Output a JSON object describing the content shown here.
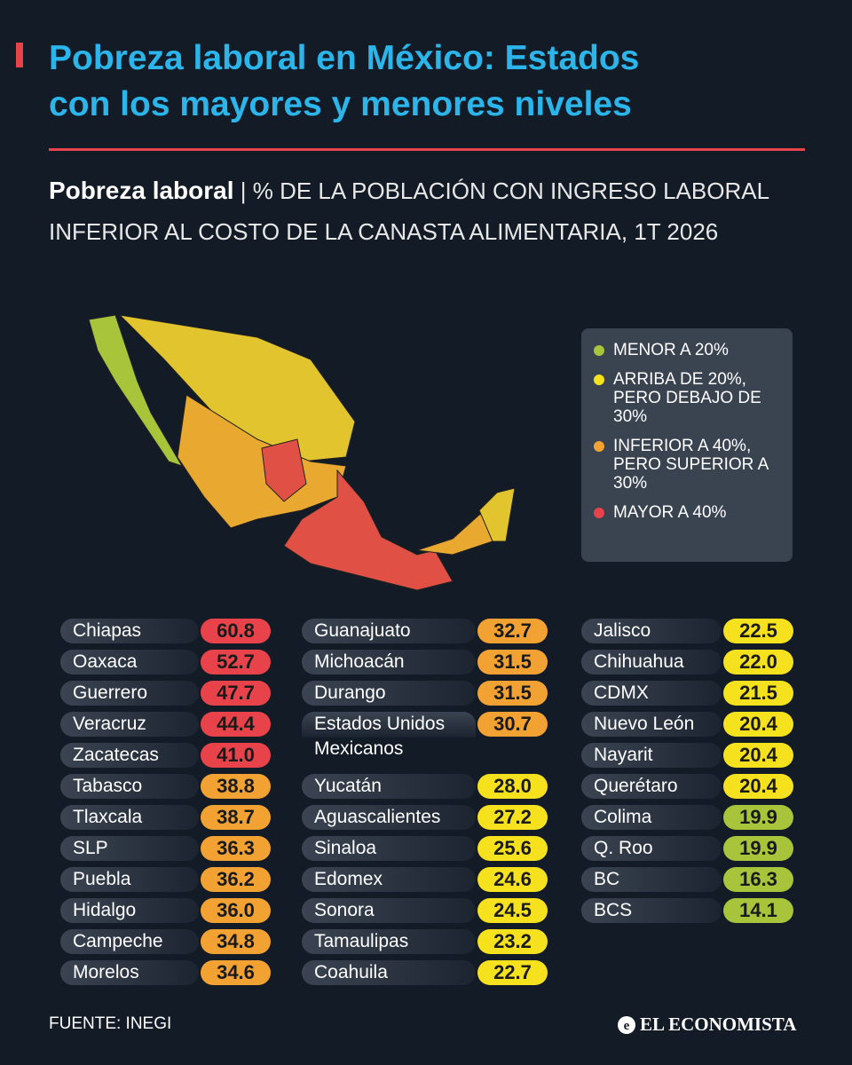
{
  "header": {
    "title_lines": [
      "Pobreza laboral en México: Estados",
      "con los mayores y menores niveles"
    ]
  },
  "subtitle": {
    "bold": "Pobreza laboral",
    "separator": "|",
    "text": "% DE LA POBLACIÓN CON INGRESO LABORAL INFERIOR AL COSTO DE LA CANASTA ALIMENTARIA, 1T 2026"
  },
  "legend": {
    "items": [
      {
        "text": "MENOR A 20%",
        "color": "#a8c43a"
      },
      {
        "text": "ARRIBA DE 20%, PERO DEBAJO DE 30%",
        "color": "#f6e11e"
      },
      {
        "text": "INFERIOR A 40%, PERO SUPERIOR A 30%",
        "color": "#f2a232"
      },
      {
        "text": "MAYOR A 40%",
        "color": "#e8434b"
      }
    ]
  },
  "table": {
    "columns": [
      [
        {
          "name": "Chiapas",
          "value": "60.8",
          "color": "#e8434b"
        },
        {
          "name": "Oaxaca",
          "value": "52.7",
          "color": "#e8434b"
        },
        {
          "name": "Guerrero",
          "value": "47.7",
          "color": "#e8434b"
        },
        {
          "name": "Veracruz",
          "value": "44.4",
          "color": "#e8434b"
        },
        {
          "name": "Zacatecas",
          "value": "41.0",
          "color": "#e8434b"
        },
        {
          "name": "Tabasco",
          "value": "38.8",
          "color": "#f2a232"
        },
        {
          "name": "Tlaxcala",
          "value": "38.7",
          "color": "#f2a232"
        },
        {
          "name": "SLP",
          "value": "36.3",
          "color": "#f2a232"
        },
        {
          "name": "Puebla",
          "value": "36.2",
          "color": "#f2a232"
        },
        {
          "name": "Hidalgo",
          "value": "36.0",
          "color": "#f2a232"
        },
        {
          "name": "Campeche",
          "value": "34.8",
          "color": "#f2a232"
        },
        {
          "name": "Morelos",
          "value": "34.6",
          "color": "#f2a232"
        }
      ],
      [
        {
          "name": "Guanajuato",
          "value": "32.7",
          "color": "#f2a232"
        },
        {
          "name": "Michoacán",
          "value": "31.5",
          "color": "#f2a232"
        },
        {
          "name": "Durango",
          "value": "31.5",
          "color": "#f2a232"
        },
        {
          "name": "Estados Unidos Mexicanos",
          "value": "30.7",
          "color": "#f2a232"
        },
        {
          "name": "Yucatán",
          "value": "28.0",
          "color": "#f6e11e"
        },
        {
          "name": "Aguascalientes",
          "value": "27.2",
          "color": "#f6e11e"
        },
        {
          "name": "Sinaloa",
          "value": "25.6",
          "color": "#f6e11e"
        },
        {
          "name": "Edomex",
          "value": "24.6",
          "color": "#f6e11e"
        },
        {
          "name": "Sonora",
          "value": "24.5",
          "color": "#f6e11e"
        },
        {
          "name": "Tamaulipas",
          "value": "23.2",
          "color": "#f6e11e"
        },
        {
          "name": "Coahuila",
          "value": "22.7",
          "color": "#f6e11e"
        }
      ],
      [
        {
          "name": "Jalisco",
          "value": "22.5",
          "color": "#f6e11e"
        },
        {
          "name": "Chihuahua",
          "value": "22.0",
          "color": "#f6e11e"
        },
        {
          "name": "CDMX",
          "value": "21.5",
          "color": "#f6e11e"
        },
        {
          "name": "Nuevo León",
          "value": "20.4",
          "color": "#f6e11e"
        },
        {
          "name": "Nayarit",
          "value": "20.4",
          "color": "#f6e11e"
        },
        {
          "name": "Querétaro",
          "value": "20.4",
          "color": "#f6e11e"
        },
        {
          "name": "Colima",
          "value": "19.9",
          "color": "#a8c43a"
        },
        {
          "name": "Q. Roo",
          "value": "19.9",
          "color": "#a8c43a"
        },
        {
          "name": "BC",
          "value": "16.3",
          "color": "#a8c43a"
        },
        {
          "name": "BCS",
          "value": "14.1",
          "color": "#a8c43a"
        }
      ]
    ]
  },
  "footer": {
    "source": "FUENTE: INEGI",
    "brand": "EL ECONOMISTA"
  }
}
